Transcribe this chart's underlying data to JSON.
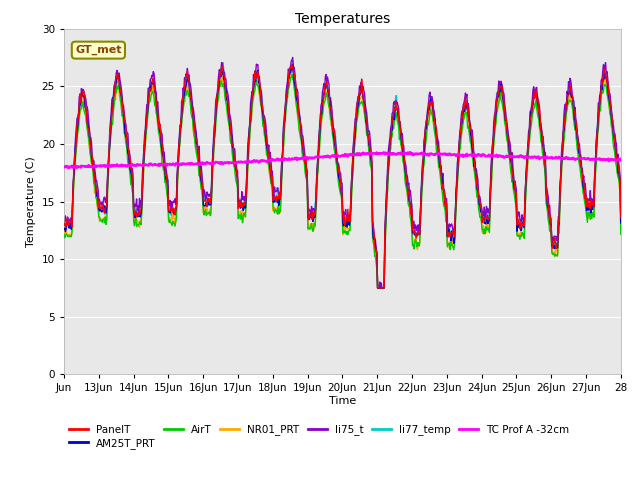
{
  "title": "Temperatures",
  "xlabel": "Time",
  "ylabel": "Temperature (C)",
  "xlim_days": [
    12,
    28
  ],
  "ylim": [
    0,
    30
  ],
  "yticks": [
    0,
    5,
    10,
    15,
    20,
    25,
    30
  ],
  "xtick_labels": [
    "Jun",
    "13Jun",
    "14Jun",
    "15Jun",
    "16Jun",
    "17Jun",
    "18Jun",
    "19Jun",
    "20Jun",
    "21Jun",
    "22Jun",
    "23Jun",
    "24Jun",
    "25Jun",
    "26Jun",
    "27Jun",
    "28"
  ],
  "xtick_days": [
    12,
    13,
    14,
    15,
    16,
    17,
    18,
    19,
    20,
    21,
    22,
    23,
    24,
    25,
    26,
    27,
    28
  ],
  "series_colors": {
    "PanelT": "#ff0000",
    "AM25T_PRT": "#0000cc",
    "AirT": "#00cc00",
    "NR01_PRT": "#ffaa00",
    "li75_t": "#8800cc",
    "li77_temp": "#00cccc",
    "TC_Prof_A": "#ff00ff"
  },
  "annotation_box": {
    "text": "GT_met",
    "facecolor": "#ffffcc",
    "edgecolor": "#888800"
  },
  "background_color": "#e8e8e8",
  "figsize": [
    6.4,
    4.8
  ],
  "dpi": 100
}
